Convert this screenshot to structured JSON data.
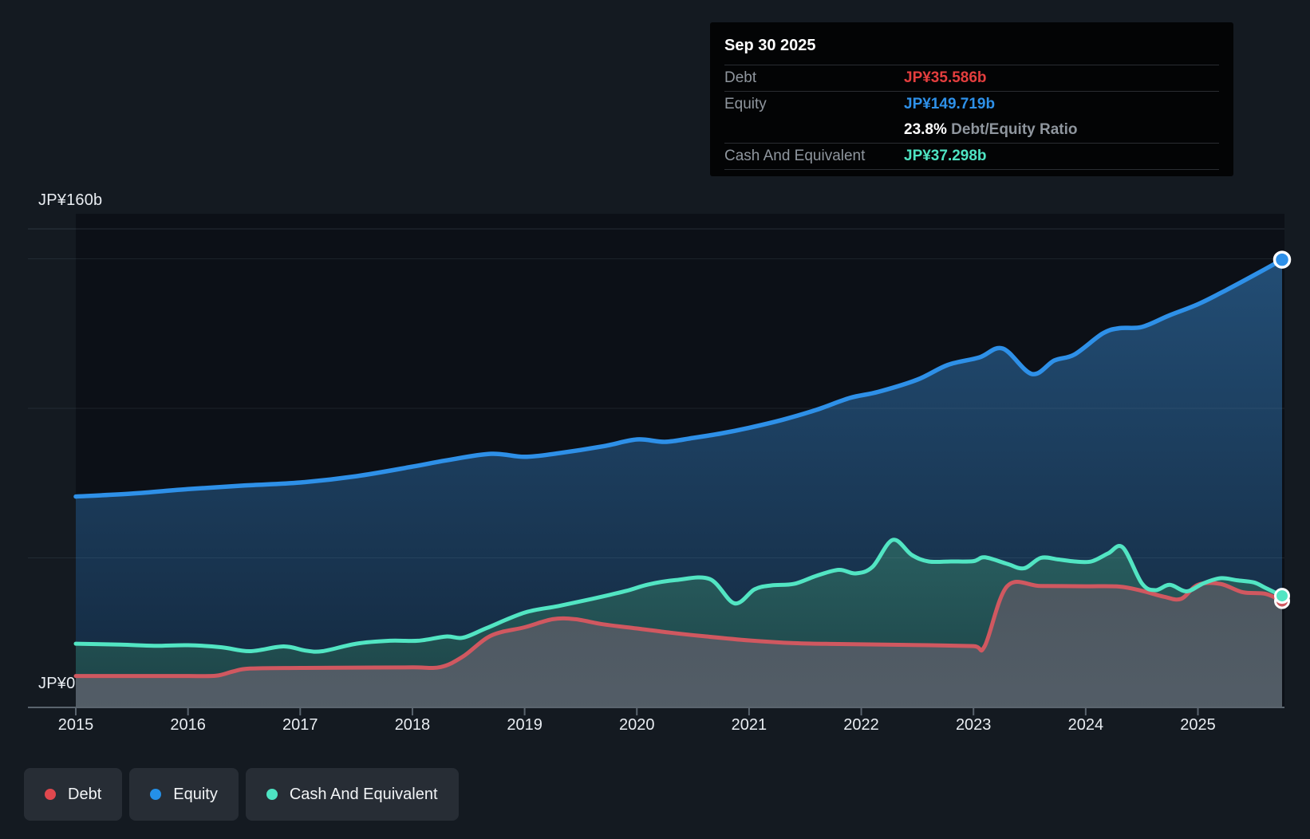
{
  "tooltip": {
    "date": "Sep 30 2025",
    "debt_label": "Debt",
    "debt_value": "JP¥35.586b",
    "equity_label": "Equity",
    "equity_value": "JP¥149.719b",
    "ratio_value": "23.8%",
    "ratio_label": "Debt/Equity Ratio",
    "cash_label": "Cash And Equivalent",
    "cash_value": "JP¥37.298b"
  },
  "legend": {
    "items": [
      {
        "label": "Debt",
        "color": "#e0484e"
      },
      {
        "label": "Equity",
        "color": "#2490e8"
      },
      {
        "label": "Cash And Equivalent",
        "color": "#4ee3c2"
      }
    ]
  },
  "colors": {
    "page_background": "#141a21",
    "plot_backdrop": "#060a10",
    "gridline": "#9fb2c5",
    "axis_line": "#5a646e",
    "debt_line": "#d05860",
    "equity_line": "#2e90e8",
    "cash_line": "#52e5c3"
  },
  "chart_data": {
    "type": "area",
    "y_axis": {
      "max_label": "JP¥160b",
      "zero_label": "JP¥0",
      "min": 0,
      "max": 160,
      "gridline_values_b": [
        160,
        150,
        100,
        50,
        0
      ],
      "unit": "JP¥ billions"
    },
    "x_axis": {
      "labels": [
        "2015",
        "2016",
        "2017",
        "2018",
        "2019",
        "2020",
        "2021",
        "2022",
        "2023",
        "2024",
        "2025"
      ],
      "ticks": [
        2015,
        2016,
        2017,
        2018,
        2019,
        2020,
        2021,
        2022,
        2023,
        2024,
        2025
      ]
    },
    "latest": {
      "date": "Sep 30 2025",
      "debt_b": 35.586,
      "equity_b": 149.719,
      "cash_b": 37.298,
      "debt_equity_ratio_pct": 23.8
    },
    "series": [
      {
        "name": "Equity",
        "color": "#2e90e8",
        "line_width": 5.5,
        "fill_top": "#24527c",
        "fill_bottom": "#142a41",
        "fill_opacity": 0.93,
        "x": [
          2015.0,
          2015.5,
          2016.0,
          2016.5,
          2017.0,
          2017.5,
          2018.0,
          2018.3,
          2018.7,
          2019.0,
          2019.3,
          2019.7,
          2020.0,
          2020.25,
          2020.5,
          2020.75,
          2021.0,
          2021.3,
          2021.6,
          2021.9,
          2022.15,
          2022.5,
          2022.77,
          2023.05,
          2023.26,
          2023.52,
          2023.72,
          2023.9,
          2024.15,
          2024.3,
          2024.5,
          2024.74,
          2025.0,
          2025.25,
          2025.5,
          2025.75
        ],
        "y": [
          70.5,
          71.5,
          73.0,
          74.2,
          75.2,
          77.3,
          80.5,
          82.6,
          84.8,
          83.8,
          85.0,
          87.3,
          89.6,
          88.8,
          90.1,
          91.6,
          93.5,
          96.2,
          99.5,
          103.5,
          105.5,
          109.6,
          114.5,
          117.0,
          120.0,
          111.5,
          116.0,
          118.0,
          125.0,
          126.8,
          127.2,
          131.0,
          134.8,
          139.5,
          144.5,
          149.719
        ]
      },
      {
        "name": "Cash And Equivalent",
        "color": "#52e5c3",
        "line_width": 5,
        "fill_top": "#2a6161",
        "fill_bottom": "#1d4446",
        "fill_opacity": 0.94,
        "x": [
          2015.0,
          2015.4,
          2015.7,
          2016.0,
          2016.3,
          2016.55,
          2016.85,
          2017.05,
          2017.2,
          2017.5,
          2017.8,
          2018.05,
          2018.3,
          2018.45,
          2018.66,
          2019.0,
          2019.3,
          2019.6,
          2019.9,
          2020.1,
          2020.35,
          2020.65,
          2020.87,
          2021.05,
          2021.2,
          2021.4,
          2021.6,
          2021.8,
          2021.95,
          2022.1,
          2022.28,
          2022.45,
          2022.6,
          2022.8,
          2023.0,
          2023.1,
          2023.3,
          2023.45,
          2023.6,
          2023.75,
          2023.9,
          2024.05,
          2024.2,
          2024.33,
          2024.5,
          2024.62,
          2024.75,
          2024.9,
          2025.05,
          2025.2,
          2025.35,
          2025.5,
          2025.6,
          2025.75
        ],
        "y": [
          21.3,
          21.0,
          20.6,
          20.8,
          20.1,
          18.8,
          20.4,
          19.0,
          18.8,
          21.3,
          22.3,
          22.3,
          23.7,
          23.3,
          26.5,
          31.7,
          33.9,
          36.3,
          38.9,
          41.1,
          42.6,
          42.9,
          34.8,
          39.5,
          40.8,
          41.3,
          44.0,
          46.0,
          44.8,
          47.0,
          56.0,
          51.0,
          48.8,
          48.8,
          48.9,
          50.2,
          48.0,
          46.5,
          50.0,
          49.5,
          48.8,
          48.8,
          51.5,
          53.5,
          41.5,
          39.2,
          41.0,
          38.8,
          41.5,
          43.2,
          42.5,
          41.8,
          40.0,
          37.298
        ]
      },
      {
        "name": "Debt",
        "color": "#d05860",
        "line_width": 5,
        "fill_top": "#4e5760",
        "fill_bottom": "#555e68",
        "fill_opacity": 0.96,
        "x": [
          2015.0,
          2015.5,
          2016.0,
          2016.25,
          2016.4,
          2016.55,
          2017.0,
          2017.5,
          2018.0,
          2018.25,
          2018.45,
          2018.7,
          2019.0,
          2019.25,
          2019.45,
          2019.7,
          2020.0,
          2020.3,
          2020.6,
          2021.0,
          2021.4,
          2021.8,
          2022.2,
          2022.6,
          2023.0,
          2023.1,
          2023.3,
          2023.6,
          2024.0,
          2024.3,
          2024.5,
          2024.7,
          2024.85,
          2025.0,
          2025.2,
          2025.4,
          2025.6,
          2025.75
        ],
        "y": [
          10.5,
          10.5,
          10.5,
          10.6,
          12.0,
          13.0,
          13.2,
          13.3,
          13.4,
          13.5,
          17.0,
          24.0,
          26.8,
          29.5,
          29.5,
          27.8,
          26.4,
          25.0,
          23.8,
          22.4,
          21.5,
          21.2,
          21.0,
          20.8,
          20.5,
          20.5,
          40.5,
          40.6,
          40.5,
          40.4,
          39.0,
          37.0,
          36.3,
          41.0,
          41.3,
          38.5,
          38.0,
          35.586
        ]
      }
    ]
  }
}
